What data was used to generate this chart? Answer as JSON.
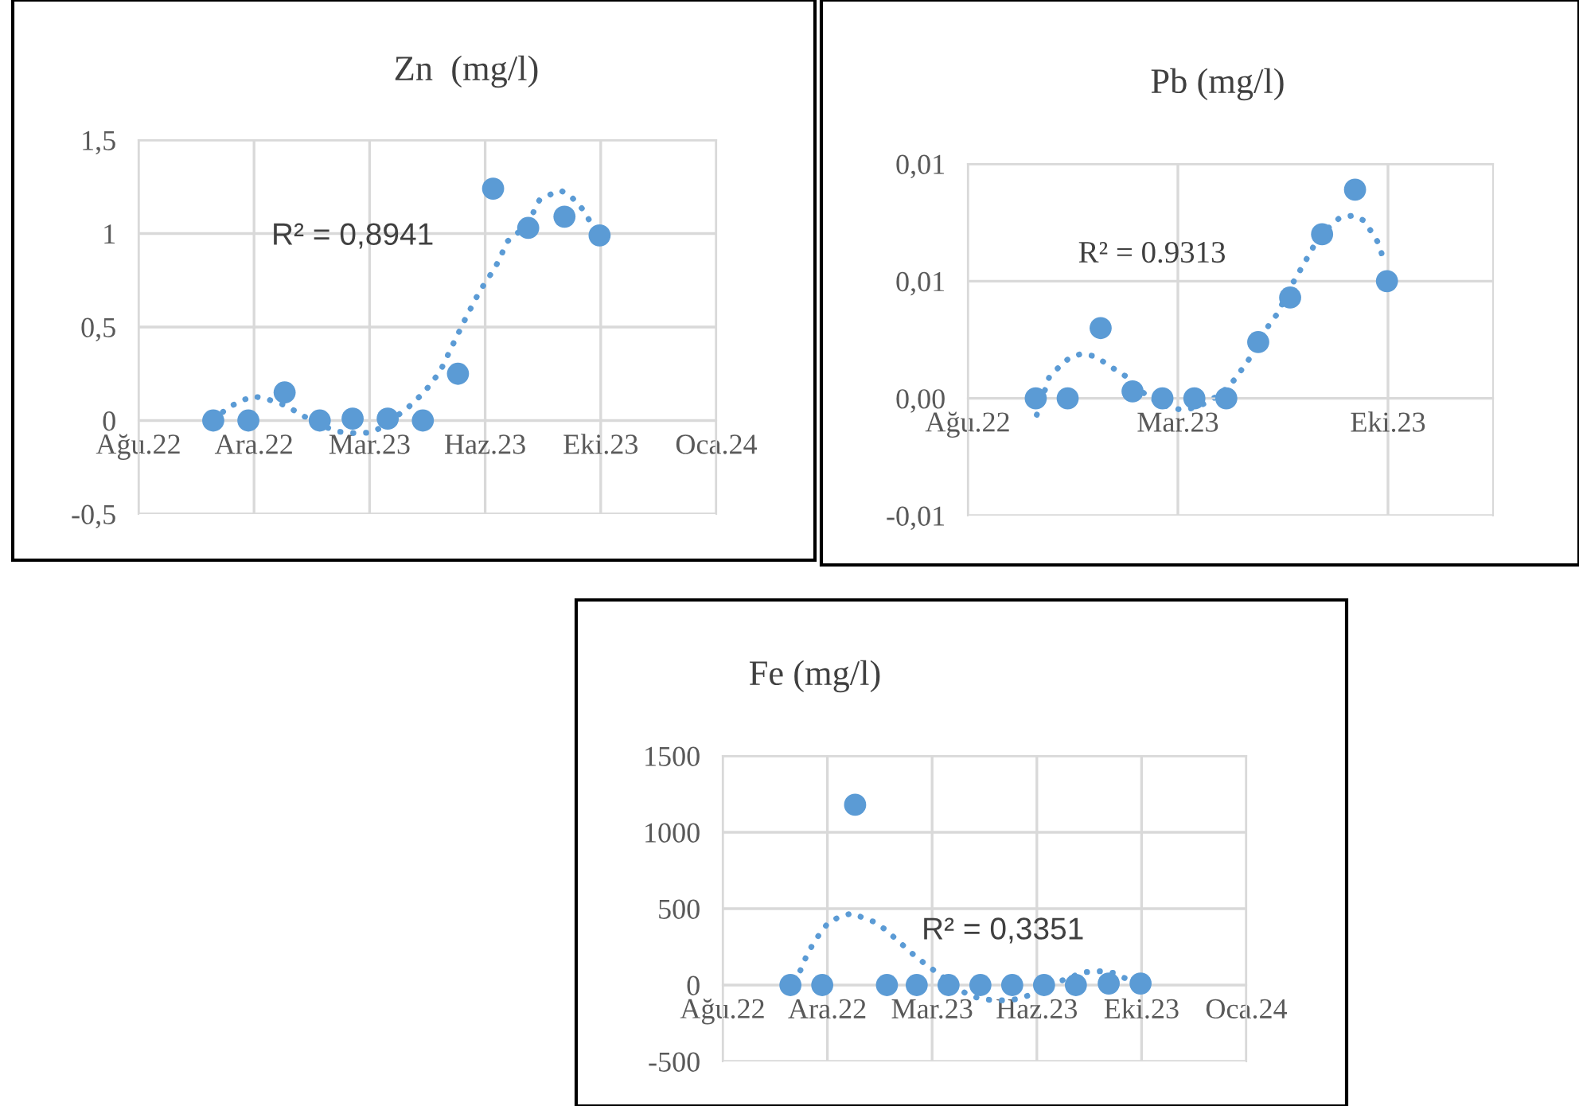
{
  "chart_data": [
    {
      "type": "scatter",
      "title": "Zn  (mg/l)",
      "grid": true,
      "xlim": [
        "2022-08-25",
        "2024-01-17"
      ],
      "xticks": [
        {
          "value": "2022-08-25",
          "label": "Ağu.22"
        },
        {
          "value": "2022-12-05",
          "label": "Ara.22"
        },
        {
          "value": "2023-03-17",
          "label": "Mar.23"
        },
        {
          "value": "2023-06-27",
          "label": "Haz.23"
        },
        {
          "value": "2023-10-07",
          "label": "Eki.23"
        },
        {
          "value": "2024-01-17",
          "label": "Oca.24"
        }
      ],
      "ylim": [
        -0.5,
        1.5
      ],
      "yticks": [
        {
          "value": -0.5,
          "label": "-0,5"
        },
        0,
        {
          "value": 0.5,
          "label": "0,5"
        },
        1,
        {
          "value": 1.5,
          "label": "1,5"
        }
      ],
      "annotations": [
        "R² = 0,8941"
      ],
      "series": [
        {
          "type": "scatter",
          "marker": "circle",
          "color": "#5b9bd5",
          "x": [
            "2022-10-30",
            "2022-11-30",
            "2023-01-01",
            "2023-02-01",
            "2023-03-02",
            "2023-04-02",
            "2023-05-03",
            "2023-06-03",
            "2023-07-04",
            "2023-08-04",
            "2023-09-05",
            "2023-10-06"
          ],
          "values": [
            0,
            0,
            0.15,
            0,
            0.01,
            0.01,
            0,
            0.25,
            1.24,
            1.03,
            1.09,
            0.99
          ]
        },
        {
          "type": "line",
          "marker": "none",
          "line_style": "dotted",
          "color": "#5b9bd5",
          "x": [
            "2022-10-30",
            "2022-11-12",
            "2022-12-03",
            "2022-12-14",
            "2023-01-02",
            "2023-01-16",
            "2023-01-30",
            "2023-02-18",
            "2023-03-08",
            "2023-03-21",
            "2023-04-05",
            "2023-04-20",
            "2023-05-04",
            "2023-05-18",
            "2023-05-29",
            "2023-06-10",
            "2023-06-22",
            "2023-07-06",
            "2023-07-17",
            "2023-07-27",
            "2023-08-05",
            "2023-08-14",
            "2023-08-24",
            "2023-09-02",
            "2023-09-12",
            "2023-09-21",
            "2023-09-30",
            "2023-10-06"
          ],
          "values": [
            0,
            0.07,
            0.13,
            0.12,
            0.08,
            0.03,
            -0.02,
            -0.06,
            -0.07,
            -0.06,
            0,
            0.07,
            0.15,
            0.26,
            0.4,
            0.55,
            0.69,
            0.82,
            0.96,
            1.01,
            1.07,
            1.18,
            1.21,
            1.23,
            1.19,
            1.13,
            1.04,
            0.98
          ]
        }
      ]
    },
    {
      "type": "scatter",
      "title": "Pb (mg/l)",
      "grid": true,
      "xlim": [
        "2022-08-25",
        "2024-01-17"
      ],
      "xticks": [
        {
          "value": "2022-08-25",
          "label": "Ağu.22"
        },
        {
          "value": "2023-03-17",
          "label": "Mar.23"
        },
        {
          "value": "2023-10-07",
          "label": "Eki.23"
        }
      ],
      "ylim": [
        -0.005,
        0.01
      ],
      "yticks": [
        {
          "value": -0.005,
          "label": "-0,01"
        },
        {
          "value": 0,
          "label": "0,00"
        },
        {
          "value": 0.005,
          "label": "0,01"
        },
        {
          "value": 0.01,
          "label": "0,01"
        }
      ],
      "annotations": [
        "R² = 0.9313"
      ],
      "series": [
        {
          "type": "scatter",
          "marker": "circle",
          "color": "#5b9bd5",
          "x": [
            "2022-10-30",
            "2022-11-30",
            "2023-01-01",
            "2023-02-01",
            "2023-03-02",
            "2023-04-02",
            "2023-05-03",
            "2023-06-03",
            "2023-07-04",
            "2023-08-04",
            "2023-09-05",
            "2023-10-06"
          ],
          "values": [
            0,
            0,
            0.003,
            0.0003,
            0,
            0,
            0,
            0.0024,
            0.0043,
            0.007,
            0.0089,
            0.005
          ]
        },
        {
          "type": "line",
          "marker": "none",
          "line_style": "dotted",
          "color": "#5b9bd5",
          "x": [
            "2022-10-31",
            "2022-11-12",
            "2022-11-23",
            "2022-12-01",
            "2022-12-13",
            "2022-12-26",
            "2023-01-06",
            "2023-01-16",
            "2023-01-27",
            "2023-02-05",
            "2023-02-15",
            "2023-03-03",
            "2023-03-21",
            "2023-04-02",
            "2023-04-13",
            "2023-04-28",
            "2023-05-11",
            "2023-05-24",
            "2023-06-03",
            "2023-06-13",
            "2023-06-23",
            "2023-07-01",
            "2023-07-09",
            "2023-07-22",
            "2023-08-01",
            "2023-08-11",
            "2023-08-21",
            "2023-09-03",
            "2023-09-13",
            "2023-09-21",
            "2023-09-28",
            "2023-10-02"
          ],
          "values": [
            -0.0007,
            0.0009,
            0.0014,
            0.0017,
            0.0019,
            0.0018,
            0.0015,
            0.0012,
            0.0009,
            0.0005,
            0.0001,
            -0.0003,
            -0.0005,
            -0.0004,
            -0.0002,
            0.0002,
            0.0008,
            0.0016,
            0.0023,
            0.0031,
            0.0037,
            0.0045,
            0.0051,
            0.0061,
            0.0069,
            0.0073,
            0.0077,
            0.0078,
            0.0076,
            0.0071,
            0.0066,
            0.006
          ]
        }
      ]
    },
    {
      "type": "scatter",
      "title": "Fe (mg/l)",
      "grid": true,
      "xlim": [
        "2022-08-25",
        "2024-01-17"
      ],
      "xticks": [
        {
          "value": "2022-08-25",
          "label": "Ağu.22"
        },
        {
          "value": "2022-12-05",
          "label": "Ara.22"
        },
        {
          "value": "2023-03-17",
          "label": "Mar.23"
        },
        {
          "value": "2023-06-27",
          "label": "Haz.23"
        },
        {
          "value": "2023-10-07",
          "label": "Eki.23"
        },
        {
          "value": "2024-01-17",
          "label": "Oca.24"
        }
      ],
      "ylim": [
        -500,
        1500
      ],
      "yticks": [
        -500,
        0,
        500,
        1000,
        1500
      ],
      "annotations": [
        "R² = 0,3351"
      ],
      "series": [
        {
          "type": "scatter",
          "marker": "circle",
          "color": "#5b9bd5",
          "x": [
            "2022-10-30",
            "2022-11-30",
            "2023-01-01",
            "2023-02-01",
            "2023-03-02",
            "2023-04-02",
            "2023-05-03",
            "2023-06-03",
            "2023-07-04",
            "2023-08-04",
            "2023-09-05",
            "2023-10-06"
          ],
          "values": [
            0,
            0,
            1180,
            0,
            0,
            0,
            0,
            0,
            0,
            0,
            10,
            10
          ]
        },
        {
          "type": "line",
          "marker": "none",
          "line_style": "dotted",
          "color": "#5b9bd5",
          "x": [
            "2022-11-03",
            "2022-11-09",
            "2022-11-14",
            "2022-11-21",
            "2022-11-28",
            "2022-12-06",
            "2022-12-18",
            "2022-12-29",
            "2023-01-09",
            "2023-01-21",
            "2023-01-31",
            "2023-02-10",
            "2023-02-20",
            "2023-03-02",
            "2023-03-12",
            "2023-03-22",
            "2023-04-07",
            "2023-04-20",
            "2023-05-03",
            "2023-05-16",
            "2023-05-29",
            "2023-06-10",
            "2023-06-22",
            "2023-07-04",
            "2023-07-17",
            "2023-07-30",
            "2023-08-09",
            "2023-08-20",
            "2023-08-30",
            "2023-09-09",
            "2023-09-19",
            "2023-09-30",
            "2023-10-06"
          ],
          "values": [
            20,
            100,
            180,
            270,
            340,
            410,
            450,
            470,
            440,
            410,
            360,
            300,
            240,
            180,
            130,
            80,
            0,
            -60,
            -90,
            -100,
            -100,
            -90,
            -60,
            -20,
            20,
            50,
            80,
            90,
            90,
            80,
            50,
            20,
            10
          ]
        }
      ]
    }
  ]
}
